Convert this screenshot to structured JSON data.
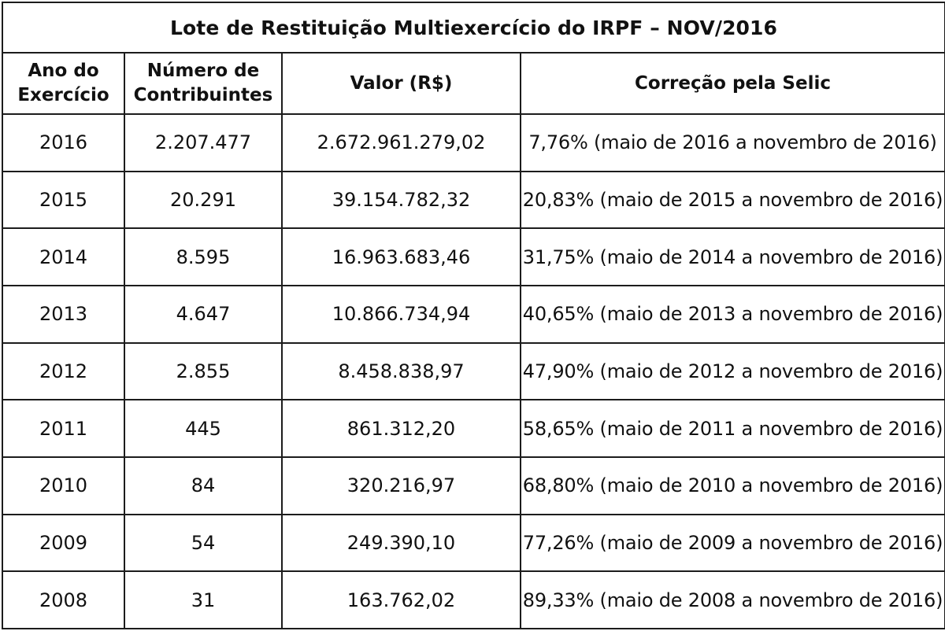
{
  "table": {
    "title": "Lote de Restituição Multiexercício do IRPF – NOV/2016",
    "headers": {
      "ano_line1": "Ano do",
      "ano_line2": "Exercício",
      "numero_line1": "Número de",
      "numero_line2": "Contribuintes",
      "valor": "Valor (R$)",
      "correcao": "Correção pela Selic"
    },
    "rows": [
      {
        "ano": "2016",
        "contribuintes": "2.207.477",
        "valor": "2.672.961.279,02",
        "correcao": "7,76% (maio de 2016 a novembro de 2016)"
      },
      {
        "ano": "2015",
        "contribuintes": "20.291",
        "valor": "39.154.782,32",
        "correcao": "20,83% (maio de 2015 a novembro de 2016)"
      },
      {
        "ano": "2014",
        "contribuintes": "8.595",
        "valor": "16.963.683,46",
        "correcao": "31,75% (maio de 2014 a novembro de 2016)"
      },
      {
        "ano": "2013",
        "contribuintes": "4.647",
        "valor": "10.866.734,94",
        "correcao": "40,65% (maio de 2013 a novembro de 2016)"
      },
      {
        "ano": "2012",
        "contribuintes": "2.855",
        "valor": "8.458.838,97",
        "correcao": "47,90% (maio de 2012 a novembro de 2016)"
      },
      {
        "ano": "2011",
        "contribuintes": "445",
        "valor": "861.312,20",
        "correcao": "58,65% (maio de 2011 a novembro de 2016)"
      },
      {
        "ano": "2010",
        "contribuintes": "84",
        "valor": "320.216,97",
        "correcao": "68,80% (maio de 2010 a novembro de 2016)"
      },
      {
        "ano": "2009",
        "contribuintes": "54",
        "valor": "249.390,10",
        "correcao": "77,26% (maio de 2009 a novembro de 2016)"
      },
      {
        "ano": "2008",
        "contribuintes": "31",
        "valor": "163.762,02",
        "correcao": "89,33% (maio de 2008 a novembro de 2016)"
      }
    ]
  }
}
